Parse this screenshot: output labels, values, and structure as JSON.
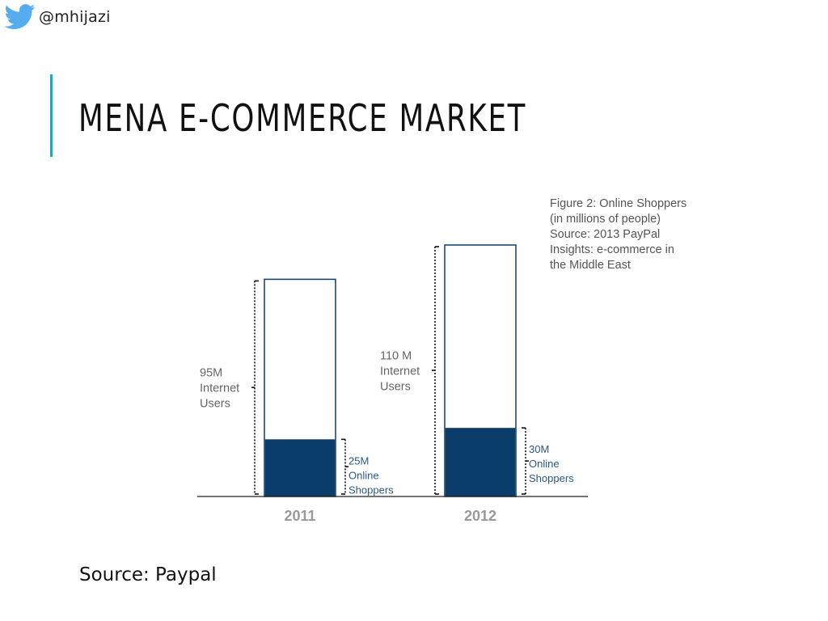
{
  "header": {
    "handle": "@mhijazi",
    "icon": "twitter-bird-icon",
    "icon_color": "#55acee"
  },
  "slide": {
    "title": "MENA E-COMMERCE MARKET",
    "accent_color": "#2aa3c3",
    "source": "Source: Paypal"
  },
  "figure": {
    "caption_lines": [
      "Figure 2:  Online Shoppers",
      "(in millions of people)",
      "Source: 2013 PayPal",
      "Insights: e-commerce in",
      "the Middle East"
    ]
  },
  "chart_data": {
    "type": "bar",
    "stacked": false,
    "categories": [
      "2011",
      "2012"
    ],
    "series": [
      {
        "name": "Internet Users",
        "values": [
          95,
          110
        ],
        "labels": [
          [
            "95M",
            "Internet",
            "Users"
          ],
          [
            "110 M",
            "Internet",
            "Users"
          ]
        ],
        "color": "#ffffff",
        "stroke": "#0b3d6b"
      },
      {
        "name": "Online Shoppers",
        "values": [
          25,
          30
        ],
        "labels": [
          [
            "25M",
            "Online",
            "Shoppers"
          ],
          [
            "30M",
            "Online",
            "Shoppers"
          ]
        ],
        "color": "#0b3d6b"
      }
    ],
    "ylim": [
      0,
      110
    ],
    "grid": false,
    "colors": {
      "tick_label": "#999999",
      "label_text": "#666666",
      "shopper_text": "#2a5a86"
    }
  }
}
